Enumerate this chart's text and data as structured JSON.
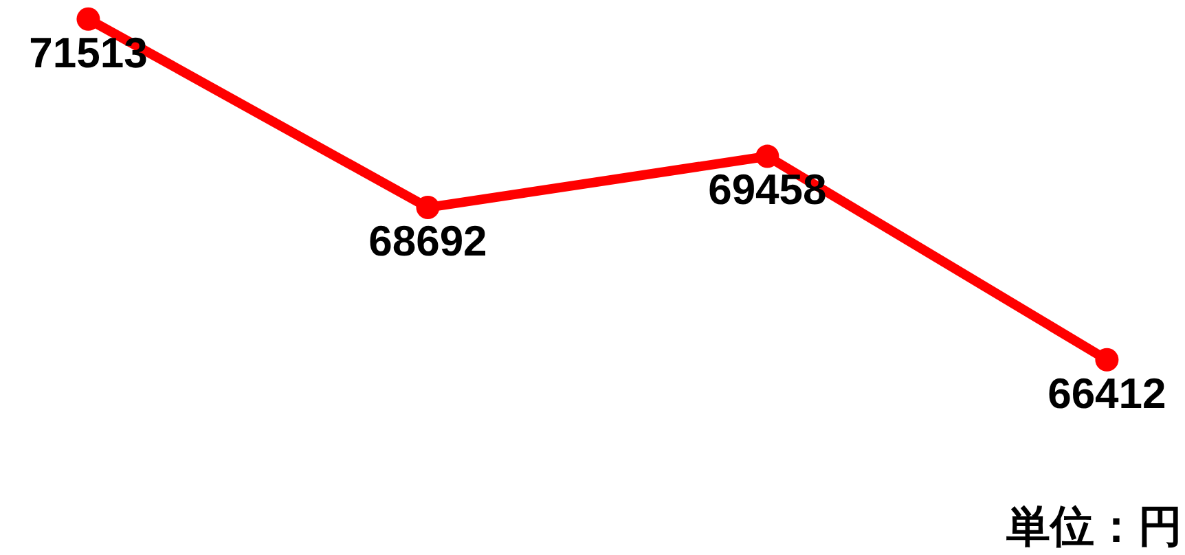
{
  "chart_data": {
    "type": "line",
    "categories": [
      null,
      null,
      null,
      null
    ],
    "series": [
      {
        "color": "#ff0000",
        "values": [
          71513,
          68692,
          69458,
          66412
        ]
      }
    ],
    "data_labels": true,
    "marker": "circle",
    "line_style": "solid",
    "annotations": [
      "単位：円"
    ]
  }
}
